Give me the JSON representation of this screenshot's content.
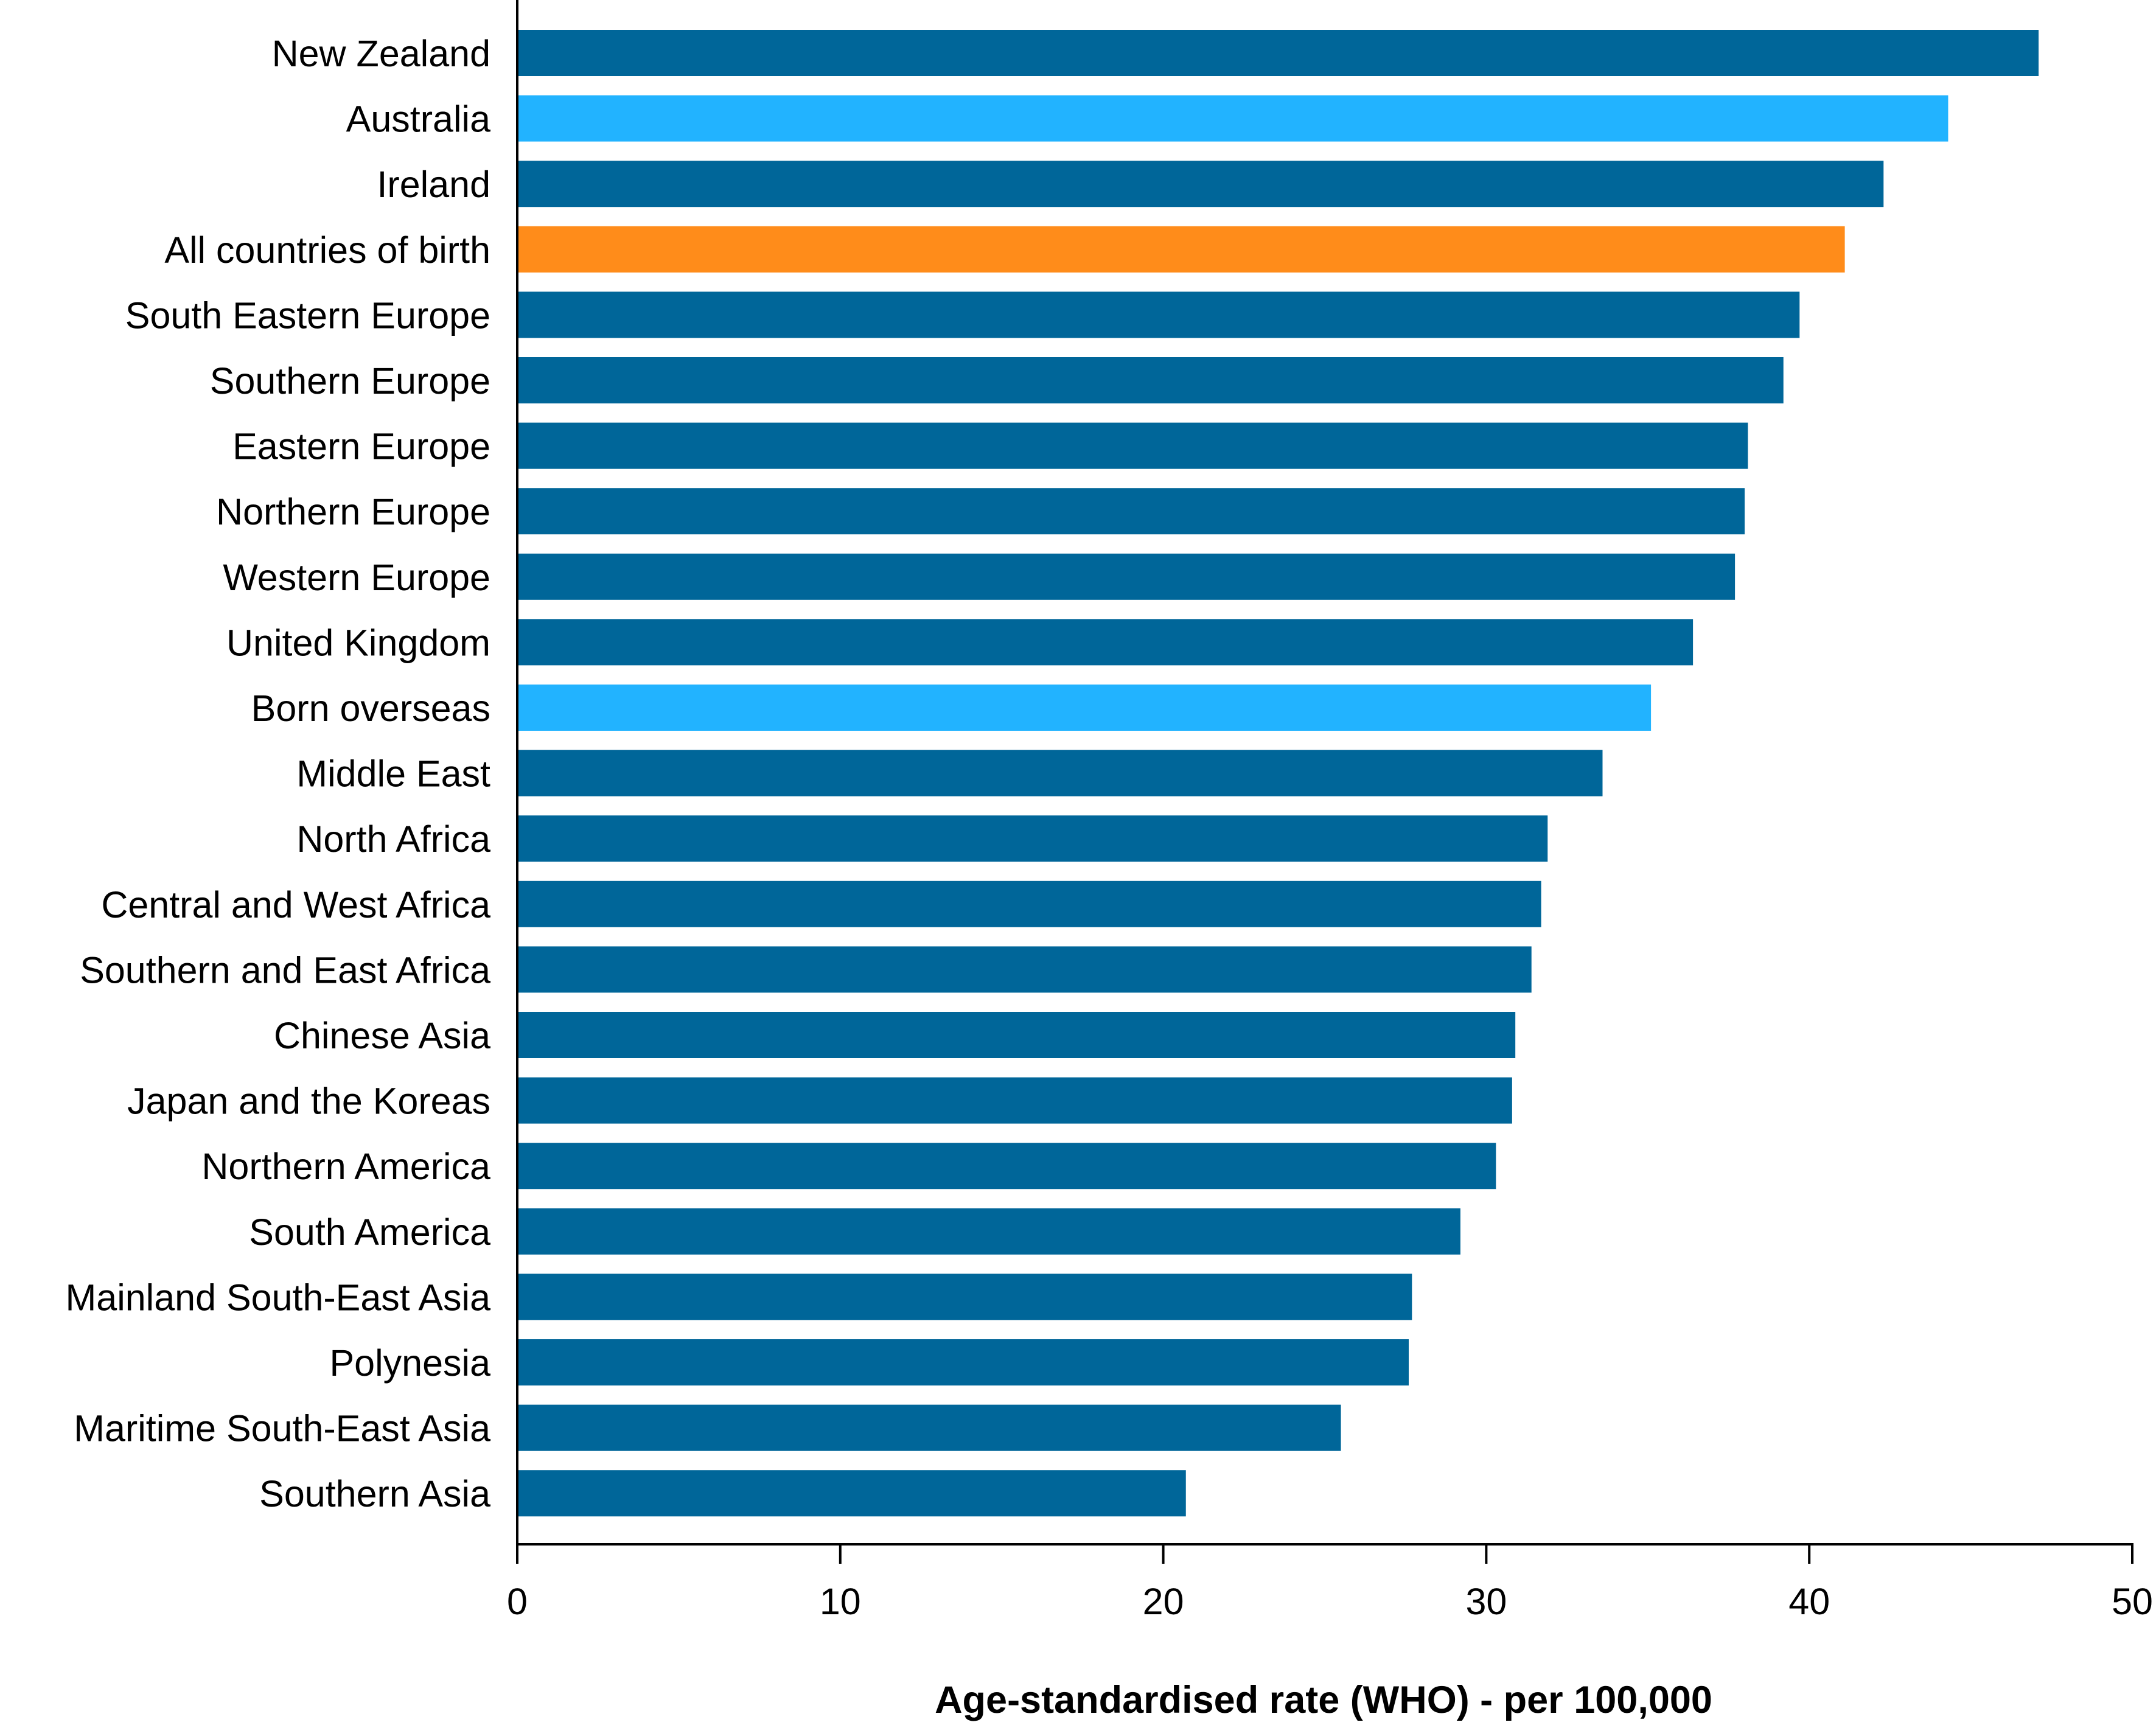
{
  "chart_data": {
    "type": "bar",
    "orientation": "horizontal",
    "title": "",
    "xlabel": "Age-standardised rate (WHO) - per 100,000",
    "ylabel": "",
    "xlim": [
      0,
      50
    ],
    "xticks": [
      0,
      10,
      20,
      30,
      40,
      50
    ],
    "grid": false,
    "legend": "none",
    "colors": {
      "default": "#006699",
      "australia": "#22b3ff",
      "born_overseas": "#22b3ff",
      "all_countries": "#ff8c1a"
    },
    "categories": [
      "New Zealand",
      "Australia",
      "Ireland",
      "All countries of birth",
      "South Eastern Europe",
      "Southern Europe",
      "Eastern Europe",
      "Northern Europe",
      "Western Europe",
      "United Kingdom",
      "Born overseas",
      "Middle East",
      "North Africa",
      "Central and West Africa",
      "Southern and East Africa",
      "Chinese Asia",
      "Japan and the Koreas",
      "Northern America",
      "South America",
      "Mainland South-East Asia",
      "Polynesia",
      "Maritime South-East Asia",
      "Southern Asia"
    ],
    "values": [
      47.1,
      44.3,
      42.3,
      41.1,
      39.7,
      39.2,
      38.1,
      38.0,
      37.7,
      36.4,
      35.1,
      33.6,
      31.9,
      31.7,
      31.4,
      30.9,
      30.8,
      30.3,
      29.2,
      27.7,
      27.6,
      25.5,
      20.7
    ],
    "bar_colors": [
      "#006699",
      "#22b3ff",
      "#006699",
      "#ff8c1a",
      "#006699",
      "#006699",
      "#006699",
      "#006699",
      "#006699",
      "#006699",
      "#22b3ff",
      "#006699",
      "#006699",
      "#006699",
      "#006699",
      "#006699",
      "#006699",
      "#006699",
      "#006699",
      "#006699",
      "#006699",
      "#006699",
      "#006699"
    ]
  }
}
